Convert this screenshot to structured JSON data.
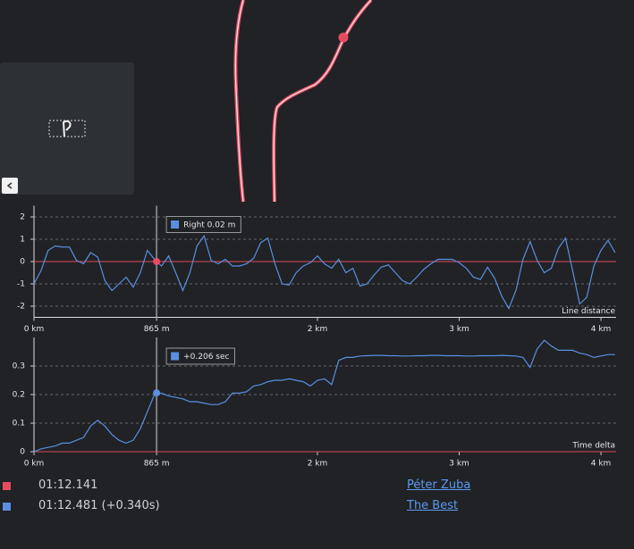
{
  "chart_data": [
    {
      "type": "line",
      "label": "Line distance",
      "x": [
        0,
        0.05,
        0.1,
        0.15,
        0.2,
        0.25,
        0.3,
        0.35,
        0.4,
        0.45,
        0.5,
        0.55,
        0.6,
        0.65,
        0.7,
        0.75,
        0.8,
        0.85,
        0.9,
        0.95,
        1,
        1.05,
        1.1,
        1.15,
        1.2,
        1.25,
        1.3,
        1.35,
        1.4,
        1.45,
        1.5,
        1.55,
        1.6,
        1.65,
        1.7,
        1.75,
        1.8,
        1.85,
        1.9,
        1.95,
        2,
        2.05,
        2.1,
        2.15,
        2.2,
        2.25,
        2.3,
        2.35,
        2.4,
        2.45,
        2.5,
        2.55,
        2.6,
        2.65,
        2.7,
        2.75,
        2.8,
        2.85,
        2.9,
        2.95,
        3,
        3.05,
        3.1,
        3.15,
        3.2,
        3.25,
        3.3,
        3.35,
        3.4,
        3.45,
        3.5,
        3.55,
        3.6,
        3.65,
        3.7,
        3.75,
        3.8,
        3.85,
        3.9,
        3.95,
        4,
        4.05,
        4.1
      ],
      "series": [
        {
          "color": "#5b8fe0",
          "values": [
            -1.0,
            -0.4,
            0.5,
            0.7,
            0.65,
            0.65,
            0.05,
            -0.1,
            0.4,
            0.2,
            -0.85,
            -1.3,
            -1.0,
            -0.7,
            -1.15,
            -0.5,
            0.5,
            0.1,
            -0.2,
            0.25,
            -0.5,
            -1.3,
            -0.5,
            0.7,
            1.15,
            0.05,
            -0.1,
            0.1,
            -0.2,
            -0.2,
            -0.1,
            0.15,
            0.85,
            1.05,
            -0.1,
            -1.0,
            -1.05,
            -0.5,
            -0.2,
            -0.05,
            0.25,
            -0.1,
            -0.3,
            0.1,
            -0.5,
            -0.3,
            -1.1,
            -1.0,
            -0.6,
            -0.25,
            -0.15,
            -0.5,
            -0.85,
            -1.0,
            -0.7,
            -0.35,
            -0.1,
            0.1,
            0.1,
            0.1,
            -0.05,
            -0.3,
            -0.7,
            -0.8,
            -0.25,
            -0.75,
            -1.55,
            -2.1,
            -1.3,
            0.1,
            0.9,
            0.05,
            -0.5,
            -0.3,
            0.6,
            1.05,
            -0.4,
            -1.9,
            -1.6,
            -0.2,
            0.5,
            0.95,
            0.4
          ]
        }
      ],
      "reference_line": {
        "value": 0,
        "color": "#e04a5a"
      },
      "xlim": [
        0,
        4.107
      ],
      "xticks": [
        {
          "value": 0,
          "label": "0 km"
        },
        {
          "value": 0.865,
          "label": "865 m"
        },
        {
          "value": 2,
          "label": "2 km"
        },
        {
          "value": 3,
          "label": "3 km"
        },
        {
          "value": 4,
          "label": "4 km"
        }
      ],
      "ylim": [
        -2.5,
        2.5
      ],
      "yticks": [
        -2,
        -1,
        0,
        1,
        2
      ],
      "grid": true,
      "marker": {
        "x": 0.865,
        "y": 0,
        "color": "#e84a5f"
      },
      "tooltip": {
        "text": "Right 0.02 m",
        "color": "#5b8fe0"
      }
    },
    {
      "type": "line",
      "label": "Time delta",
      "x": [
        0,
        0.05,
        0.1,
        0.15,
        0.2,
        0.25,
        0.3,
        0.35,
        0.4,
        0.45,
        0.5,
        0.55,
        0.6,
        0.65,
        0.7,
        0.75,
        0.8,
        0.85,
        0.9,
        0.95,
        1,
        1.05,
        1.1,
        1.15,
        1.2,
        1.25,
        1.3,
        1.35,
        1.4,
        1.45,
        1.5,
        1.55,
        1.6,
        1.65,
        1.7,
        1.75,
        1.8,
        1.85,
        1.9,
        1.95,
        2,
        2.05,
        2.1,
        2.15,
        2.2,
        2.25,
        2.3,
        2.35,
        2.4,
        2.45,
        2.5,
        2.55,
        2.6,
        2.65,
        2.7,
        2.75,
        2.8,
        2.85,
        2.9,
        2.95,
        3,
        3.05,
        3.1,
        3.15,
        3.2,
        3.25,
        3.3,
        3.35,
        3.4,
        3.45,
        3.5,
        3.55,
        3.6,
        3.65,
        3.7,
        3.75,
        3.8,
        3.85,
        3.9,
        3.95,
        4,
        4.05,
        4.1
      ],
      "series": [
        {
          "color": "#5b8fe0",
          "values": [
            0,
            0.01,
            0.015,
            0.02,
            0.03,
            0.03,
            0.04,
            0.05,
            0.09,
            0.11,
            0.09,
            0.06,
            0.04,
            0.03,
            0.04,
            0.08,
            0.14,
            0.2,
            0.205,
            0.195,
            0.19,
            0.185,
            0.175,
            0.175,
            0.17,
            0.165,
            0.165,
            0.175,
            0.205,
            0.205,
            0.21,
            0.23,
            0.235,
            0.245,
            0.25,
            0.25,
            0.255,
            0.25,
            0.245,
            0.23,
            0.25,
            0.255,
            0.235,
            0.32,
            0.33,
            0.33,
            0.335,
            0.336,
            0.337,
            0.337,
            0.336,
            0.336,
            0.335,
            0.335,
            0.336,
            0.336,
            0.337,
            0.337,
            0.336,
            0.336,
            0.336,
            0.335,
            0.335,
            0.336,
            0.336,
            0.336,
            0.337,
            0.336,
            0.335,
            0.33,
            0.295,
            0.36,
            0.39,
            0.37,
            0.355,
            0.355,
            0.355,
            0.345,
            0.34,
            0.33,
            0.335,
            0.34,
            0.34
          ]
        }
      ],
      "reference_line": {
        "value": 0,
        "color": "#e04a5a"
      },
      "xlim": [
        0,
        4.107
      ],
      "xticks": [
        {
          "value": 0,
          "label": "0 km"
        },
        {
          "value": 0.865,
          "label": "865 m"
        },
        {
          "value": 2,
          "label": "2 km"
        },
        {
          "value": 3,
          "label": "3 km"
        },
        {
          "value": 4,
          "label": "4 km"
        }
      ],
      "ylim": [
        0,
        0.4
      ],
      "yticks": [
        0,
        0.1,
        0.2,
        0.3
      ],
      "grid": true,
      "marker": {
        "x": 0.865,
        "y": 0.206,
        "color": "#5b8fe0"
      },
      "tooltip": {
        "text": "+0.206 sec",
        "color": "#5b8fe0"
      }
    }
  ],
  "laps": [
    {
      "color": "#e84a5f",
      "time": "01:12.141",
      "driver": "Péter Zuba"
    },
    {
      "color": "#5b8fe0",
      "time": "01:12.481 (+0.340s)",
      "driver": "The Best"
    }
  ]
}
